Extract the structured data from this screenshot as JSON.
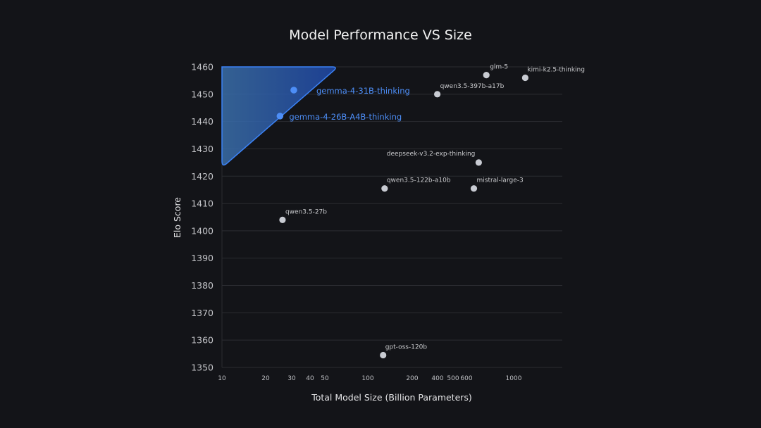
{
  "chart_data": {
    "type": "scatter",
    "title": "Model Performance VS Size",
    "xlabel": "Total Model Size (Billion Parameters)",
    "ylabel": "Elo Score",
    "xscale": "log",
    "xlim": [
      10,
      2000
    ],
    "ylim": [
      1350,
      1460
    ],
    "xticks": [
      10,
      20,
      30,
      40,
      50,
      100,
      200,
      400,
      500,
      600,
      1000
    ],
    "yticks": [
      1350,
      1360,
      1370,
      1380,
      1390,
      1400,
      1410,
      1420,
      1430,
      1440,
      1450,
      1460
    ],
    "grid": "horizontal",
    "colors": {
      "highlight": "#4d8ef7",
      "default": "#c8cbd2",
      "background": "#131418"
    },
    "points": [
      {
        "label": "gemma-4-31B-thinking",
        "x": 31,
        "y": 1451.5,
        "highlight": true
      },
      {
        "label": "gemma-4-26B-A4B-thinking",
        "x": 25,
        "y": 1442,
        "highlight": true
      },
      {
        "label": "glm-5",
        "x": 744,
        "y": 1457,
        "highlight": false
      },
      {
        "label": "kimi-k2.5-thinking",
        "x": 1200,
        "y": 1456,
        "highlight": false
      },
      {
        "label": "qwen3.5-397b-a17b",
        "x": 397,
        "y": 1450,
        "highlight": false
      },
      {
        "label": "deepseek-v3.2-exp-thinking",
        "x": 685,
        "y": 1425,
        "highlight": false
      },
      {
        "label": "qwen3.5-122b-a10b",
        "x": 130,
        "y": 1415.5,
        "highlight": false
      },
      {
        "label": "mistral-large-3",
        "x": 650,
        "y": 1415.5,
        "highlight": false
      },
      {
        "label": "qwen3.5-27b",
        "x": 26,
        "y": 1404,
        "highlight": false
      },
      {
        "label": "gpt-oss-120b",
        "x": 127,
        "y": 1354.5,
        "highlight": false
      }
    ]
  }
}
